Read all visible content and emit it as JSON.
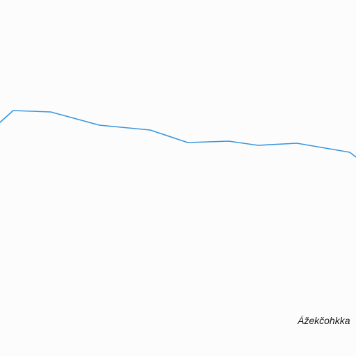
{
  "map": {
    "background_color": "#fcfcfc",
    "route": {
      "color": "#3a96dd"
    },
    "place_label": "Ážekčohkka"
  }
}
